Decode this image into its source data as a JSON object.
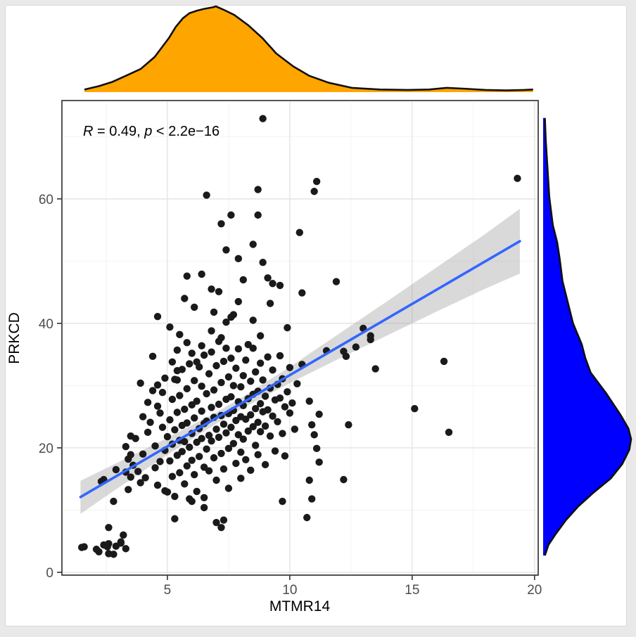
{
  "chart_data": {
    "type": "scatter",
    "title": "",
    "xlabel": "MTMR14",
    "ylabel": "PRKCD",
    "annotation": {
      "r_label": "R",
      "mid": " = 0.49, ",
      "p_label": "p",
      "tail": " < 2.2e−16"
    },
    "legend": "none",
    "grid": true,
    "xlim": [
      0.69,
      20.15
    ],
    "ylim": [
      -0.45,
      75.8
    ],
    "x_ticks": [
      5,
      10,
      15,
      20
    ],
    "y_ticks": [
      0,
      20,
      40,
      60
    ],
    "x_minor_ticks": [
      2.5,
      7.5,
      12.5,
      17.5
    ],
    "y_minor_ticks": [
      10,
      30,
      50,
      70
    ],
    "colors": {
      "point": "#1a1a1a",
      "regression_line": "#3366FF",
      "confidence_band": "rgba(155,155,155,0.38)",
      "top_density_fill": "#FFA500",
      "right_density_fill": "#0000FF",
      "density_stroke": "#101010",
      "grid_major": "#e4e4e4",
      "grid_minor": "#f2f2f2",
      "panel_border": "#2f2f2f",
      "tick": "#333333",
      "tick_label": "#4d4d4d",
      "outer_background": "#e9e9e9",
      "panel_background": "#ffffff"
    },
    "regression": {
      "line": [
        [
          1.45,
          12.1
        ],
        [
          19.4,
          53.2
        ]
      ],
      "band": [
        [
          1.45,
          9.4,
          14.7
        ],
        [
          3,
          13.6,
          17.7
        ],
        [
          5,
          18.9,
          21.6
        ],
        [
          7,
          23.9,
          25.7
        ],
        [
          8,
          26.2,
          28.0
        ],
        [
          10,
          30.4,
          33.0
        ],
        [
          12,
          34.3,
          38.3
        ],
        [
          14,
          38.1,
          43.6
        ],
        [
          16,
          41.9,
          49.0
        ],
        [
          18,
          45.6,
          54.4
        ],
        [
          19.4,
          48.0,
          58.4
        ]
      ]
    },
    "top_density": {
      "variable": "MTMR14",
      "points": [
        [
          1.61,
          0.03
        ],
        [
          2.2,
          0.07
        ],
        [
          2.76,
          0.12
        ],
        [
          3.3,
          0.19
        ],
        [
          3.91,
          0.27
        ],
        [
          4.48,
          0.41
        ],
        [
          5.06,
          0.63
        ],
        [
          5.34,
          0.76
        ],
        [
          5.63,
          0.86
        ],
        [
          5.9,
          0.92
        ],
        [
          6.21,
          0.95
        ],
        [
          6.5,
          0.97
        ],
        [
          6.87,
          0.99
        ],
        [
          6.98,
          1.0
        ],
        [
          7.3,
          0.96
        ],
        [
          7.73,
          0.9
        ],
        [
          8.3,
          0.78
        ],
        [
          8.88,
          0.63
        ],
        [
          9.45,
          0.45
        ],
        [
          10.14,
          0.3
        ],
        [
          10.8,
          0.19
        ],
        [
          11.58,
          0.11
        ],
        [
          12.53,
          0.05
        ],
        [
          13.68,
          0.03
        ],
        [
          14.83,
          0.025
        ],
        [
          15.69,
          0.03
        ],
        [
          16.41,
          0.05
        ],
        [
          17.13,
          0.04
        ],
        [
          17.99,
          0.025
        ],
        [
          18.85,
          0.02
        ],
        [
          19.57,
          0.025
        ],
        [
          19.94,
          0.03
        ]
      ]
    },
    "right_density": {
      "variable": "PRKCD",
      "points": [
        [
          73.0,
          0.02
        ],
        [
          69.4,
          0.03
        ],
        [
          64.9,
          0.05
        ],
        [
          60.3,
          0.07
        ],
        [
          55.8,
          0.11
        ],
        [
          53.0,
          0.16
        ],
        [
          50.2,
          0.19
        ],
        [
          46.8,
          0.22
        ],
        [
          43.4,
          0.28
        ],
        [
          40.0,
          0.34
        ],
        [
          36.6,
          0.44
        ],
        [
          34.4,
          0.48
        ],
        [
          32.1,
          0.54
        ],
        [
          28.7,
          0.72
        ],
        [
          25.3,
          0.88
        ],
        [
          23.1,
          0.97
        ],
        [
          21.4,
          1.0
        ],
        [
          19.7,
          0.98
        ],
        [
          17.4,
          0.9
        ],
        [
          15.1,
          0.77
        ],
        [
          12.9,
          0.58
        ],
        [
          10.6,
          0.4
        ],
        [
          8.4,
          0.26
        ],
        [
          6.1,
          0.14
        ],
        [
          4.4,
          0.06
        ],
        [
          2.7,
          0.02
        ]
      ]
    },
    "points": [
      [
        1.5,
        4.0
      ],
      [
        1.6,
        4.1
      ],
      [
        2.1,
        3.7
      ],
      [
        2.2,
        3.3
      ],
      [
        2.4,
        4.4
      ],
      [
        2.55,
        4.1
      ],
      [
        2.6,
        4.6
      ],
      [
        2.6,
        3.0
      ],
      [
        2.8,
        2.9
      ],
      [
        2.9,
        4.2
      ],
      [
        3.1,
        4.7
      ],
      [
        3.1,
        4.9
      ],
      [
        3.3,
        3.8
      ],
      [
        3.2,
        6.0
      ],
      [
        2.6,
        7.2
      ],
      [
        2.8,
        11.4
      ],
      [
        2.3,
        14.6
      ],
      [
        2.4,
        14.9
      ],
      [
        2.9,
        16.5
      ],
      [
        3.3,
        16.1
      ],
      [
        3.4,
        13.3
      ],
      [
        3.5,
        15.3
      ],
      [
        3.6,
        17.2
      ],
      [
        3.7,
        21.5
      ],
      [
        3.9,
        14.4
      ],
      [
        4.0,
        19.0
      ],
      [
        3.8,
        16.2
      ],
      [
        4.1,
        15.2
      ],
      [
        3.5,
        18.9
      ],
      [
        3.9,
        30.4
      ],
      [
        4.4,
        34.7
      ],
      [
        4.4,
        29.2
      ],
      [
        4.0,
        25.0
      ],
      [
        3.5,
        21.9
      ],
      [
        3.4,
        18.2
      ],
      [
        3.3,
        20.2
      ],
      [
        4.2,
        22.5
      ],
      [
        4.3,
        24.1
      ],
      [
        4.5,
        20.3
      ],
      [
        4.6,
        26.7
      ],
      [
        4.6,
        14.0
      ],
      [
        4.7,
        17.8
      ],
      [
        4.8,
        23.3
      ],
      [
        4.8,
        28.9
      ],
      [
        4.9,
        19.6
      ],
      [
        5.0,
        21.8
      ],
      [
        4.5,
        16.8
      ],
      [
        4.7,
        25.6
      ],
      [
        4.9,
        31.2
      ],
      [
        4.6,
        30.1
      ],
      [
        4.2,
        27.3
      ],
      [
        4.9,
        13.1
      ],
      [
        5.0,
        12.9
      ],
      [
        5.1,
        24.5
      ],
      [
        5.1,
        17.9
      ],
      [
        5.2,
        20.6
      ],
      [
        5.2,
        27.8
      ],
      [
        5.2,
        15.4
      ],
      [
        5.3,
        22.9
      ],
      [
        5.3,
        31.0
      ],
      [
        5.3,
        12.2
      ],
      [
        5.4,
        18.8
      ],
      [
        5.4,
        25.7
      ],
      [
        5.4,
        35.7
      ],
      [
        5.5,
        21.2
      ],
      [
        5.5,
        28.4
      ],
      [
        5.5,
        16.0
      ],
      [
        5.6,
        23.6
      ],
      [
        5.6,
        19.4
      ],
      [
        5.6,
        32.6
      ],
      [
        5.7,
        26.2
      ],
      [
        5.7,
        14.2
      ],
      [
        5.7,
        21.0
      ],
      [
        5.8,
        29.5
      ],
      [
        5.8,
        17.1
      ],
      [
        5.8,
        24.0
      ],
      [
        5.9,
        20.1
      ],
      [
        5.9,
        33.5
      ],
      [
        5.9,
        11.8
      ],
      [
        6.0,
        26.9
      ],
      [
        6.0,
        22.3
      ],
      [
        6.0,
        18.0
      ],
      [
        6.1,
        30.8
      ],
      [
        6.1,
        15.7
      ],
      [
        6.1,
        24.8
      ],
      [
        6.2,
        20.9
      ],
      [
        6.2,
        27.5
      ],
      [
        6.2,
        13.0
      ],
      [
        6.3,
        23.1
      ],
      [
        6.3,
        33.0
      ],
      [
        6.3,
        18.6
      ],
      [
        6.4,
        25.9
      ],
      [
        6.4,
        21.5
      ],
      [
        6.4,
        29.9
      ],
      [
        6.5,
        16.9
      ],
      [
        6.5,
        23.9
      ],
      [
        6.5,
        34.9
      ],
      [
        6.5,
        12.0
      ],
      [
        5.2,
        33.8
      ],
      [
        5.4,
        32.4
      ],
      [
        6.2,
        33.8
      ],
      [
        5.4,
        30.9
      ],
      [
        6.0,
        11.4
      ],
      [
        5.3,
        8.6
      ],
      [
        6.5,
        10.4
      ],
      [
        5.5,
        38.2
      ],
      [
        6.0,
        35.2
      ],
      [
        5.8,
        36.9
      ],
      [
        6.4,
        36.4
      ],
      [
        6.6,
        24.3
      ],
      [
        6.6,
        19.8
      ],
      [
        6.6,
        28.7
      ],
      [
        6.7,
        22.0
      ],
      [
        6.7,
        31.9
      ],
      [
        6.7,
        16.3
      ],
      [
        6.8,
        26.5
      ],
      [
        6.8,
        21.1
      ],
      [
        6.8,
        35.4
      ],
      [
        6.9,
        24.9
      ],
      [
        6.9,
        18.4
      ],
      [
        6.9,
        29.3
      ],
      [
        7.0,
        23.0
      ],
      [
        7.0,
        33.2
      ],
      [
        7.0,
        14.8
      ],
      [
        7.0,
        8.0
      ],
      [
        7.1,
        27.0
      ],
      [
        7.1,
        21.7
      ],
      [
        7.1,
        37.1
      ],
      [
        7.2,
        25.2
      ],
      [
        7.2,
        19.1
      ],
      [
        7.2,
        30.5
      ],
      [
        7.3,
        23.8
      ],
      [
        7.3,
        16.6
      ],
      [
        7.3,
        33.9
      ],
      [
        7.3,
        8.4
      ],
      [
        7.2,
        7.2
      ],
      [
        7.4,
        27.8
      ],
      [
        7.4,
        22.4
      ],
      [
        7.4,
        36.0
      ],
      [
        7.5,
        25.5
      ],
      [
        7.5,
        19.9
      ],
      [
        7.5,
        31.4
      ],
      [
        7.5,
        13.5
      ],
      [
        7.6,
        28.2
      ],
      [
        7.6,
        23.3
      ],
      [
        7.6,
        34.4
      ],
      [
        7.7,
        26.0
      ],
      [
        7.7,
        20.7
      ],
      [
        7.7,
        30.0
      ],
      [
        7.8,
        24.4
      ],
      [
        7.8,
        17.5
      ],
      [
        7.8,
        32.8
      ],
      [
        7.9,
        27.4
      ],
      [
        7.9,
        22.1
      ],
      [
        7.9,
        35.9
      ],
      [
        8.0,
        25.0
      ],
      [
        8.0,
        19.3
      ],
      [
        8.0,
        29.8
      ],
      [
        8.0,
        15.1
      ],
      [
        7.6,
        41.0
      ],
      [
        7.9,
        43.5
      ],
      [
        7.4,
        40.2
      ],
      [
        6.8,
        38.8
      ],
      [
        7.2,
        37.7
      ],
      [
        8.1,
        26.8
      ],
      [
        8.1,
        21.4
      ],
      [
        8.1,
        31.6
      ],
      [
        8.2,
        24.6
      ],
      [
        8.2,
        18.1
      ],
      [
        8.2,
        34.1
      ],
      [
        8.3,
        27.9
      ],
      [
        8.3,
        22.7
      ],
      [
        8.3,
        36.6
      ],
      [
        8.4,
        25.3
      ],
      [
        8.4,
        30.7
      ],
      [
        8.4,
        16.4
      ],
      [
        8.5,
        28.6
      ],
      [
        8.5,
        23.4
      ],
      [
        8.5,
        36.0
      ],
      [
        8.6,
        26.3
      ],
      [
        8.6,
        20.4
      ],
      [
        8.6,
        32.2
      ],
      [
        8.7,
        24.1
      ],
      [
        8.7,
        29.1
      ],
      [
        8.7,
        18.9
      ],
      [
        8.8,
        27.1
      ],
      [
        8.8,
        33.6
      ],
      [
        8.8,
        22.6
      ],
      [
        8.9,
        25.8
      ],
      [
        8.9,
        30.9
      ],
      [
        9.0,
        23.5
      ],
      [
        9.0,
        28.3
      ],
      [
        9.0,
        17.3
      ],
      [
        9.1,
        34.6
      ],
      [
        9.1,
        26.1
      ],
      [
        9.2,
        21.9
      ],
      [
        9.2,
        29.6
      ],
      [
        9.3,
        25.1
      ],
      [
        9.3,
        32.5
      ],
      [
        9.4,
        27.7
      ],
      [
        9.4,
        19.5
      ],
      [
        9.5,
        30.2
      ],
      [
        9.5,
        24.2
      ],
      [
        9.6,
        34.8
      ],
      [
        9.6,
        28.0
      ],
      [
        9.7,
        22.3
      ],
      [
        9.7,
        31.1
      ],
      [
        9.8,
        26.6
      ],
      [
        9.8,
        18.7
      ],
      [
        9.9,
        29.0
      ],
      [
        9.9,
        39.3
      ],
      [
        10.0,
        25.6
      ],
      [
        10.0,
        32.9
      ],
      [
        10.1,
        27.2
      ],
      [
        9.7,
        11.4
      ],
      [
        10.2,
        23.0
      ],
      [
        10.3,
        30.3
      ],
      [
        8.9,
        72.9
      ],
      [
        6.6,
        60.6
      ],
      [
        8.7,
        61.5
      ],
      [
        7.6,
        57.4
      ],
      [
        7.2,
        56.0
      ],
      [
        8.7,
        57.4
      ],
      [
        10.4,
        54.6
      ],
      [
        7.4,
        51.8
      ],
      [
        8.5,
        52.7
      ],
      [
        7.9,
        50.4
      ],
      [
        8.9,
        49.8
      ],
      [
        5.8,
        47.6
      ],
      [
        6.4,
        47.9
      ],
      [
        6.8,
        45.5
      ],
      [
        7.1,
        45.1
      ],
      [
        8.1,
        47.0
      ],
      [
        9.1,
        47.3
      ],
      [
        9.3,
        46.4
      ],
      [
        9.6,
        46.1
      ],
      [
        5.7,
        44.0
      ],
      [
        4.6,
        41.1
      ],
      [
        5.1,
        39.4
      ],
      [
        6.1,
        42.6
      ],
      [
        6.9,
        41.8
      ],
      [
        8.5,
        40.5
      ],
      [
        8.8,
        38.0
      ],
      [
        7.7,
        41.4
      ],
      [
        9.2,
        43.2
      ],
      [
        11.1,
        62.8
      ],
      [
        11.0,
        61.2
      ],
      [
        19.3,
        63.3
      ],
      [
        11.9,
        46.7
      ],
      [
        10.5,
        44.9
      ],
      [
        13.0,
        39.2
      ],
      [
        13.3,
        38.0
      ],
      [
        11.5,
        35.6
      ],
      [
        12.2,
        35.5
      ],
      [
        12.3,
        34.7
      ],
      [
        10.5,
        33.4
      ],
      [
        13.5,
        32.7
      ],
      [
        16.3,
        33.9
      ],
      [
        10.8,
        27.5
      ],
      [
        11.2,
        25.4
      ],
      [
        15.1,
        26.3
      ],
      [
        10.9,
        23.7
      ],
      [
        12.4,
        23.7
      ],
      [
        11.0,
        22.1
      ],
      [
        16.5,
        22.5
      ],
      [
        11.1,
        19.9
      ],
      [
        11.2,
        17.7
      ],
      [
        10.8,
        14.8
      ],
      [
        12.2,
        14.9
      ],
      [
        10.9,
        11.8
      ],
      [
        10.7,
        8.8
      ],
      [
        13.3,
        37.4
      ],
      [
        12.7,
        36.2
      ]
    ]
  }
}
